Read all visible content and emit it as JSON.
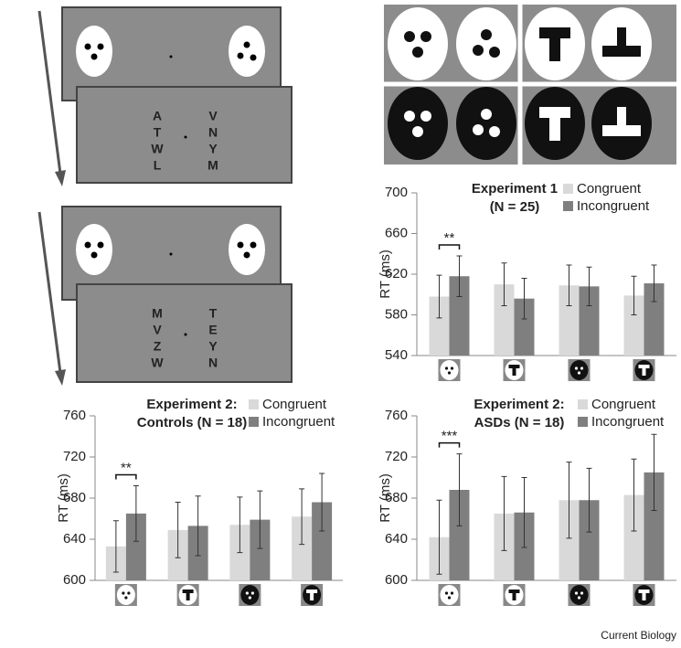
{
  "chart_data": [
    {
      "type": "bar",
      "title": [
        "Experiment 1",
        "(N = 25)"
      ],
      "y_label": "RT (ms)",
      "categories": [
        null,
        null,
        null,
        null
      ],
      "ylim": [
        540,
        700
      ],
      "yticks": [
        540,
        580,
        620,
        660,
        700
      ],
      "annotation": "**",
      "series": [
        {
          "name": "Congruent",
          "color": "#d9d9d9",
          "values": [
            598,
            610,
            609,
            599
          ],
          "errors": [
            21,
            21,
            20,
            19
          ]
        },
        {
          "name": "Incongruent",
          "color": "#7f7f7f",
          "values": [
            618,
            596,
            608,
            611
          ],
          "errors": [
            20,
            20,
            19,
            18
          ]
        }
      ]
    },
    {
      "type": "bar",
      "title": [
        "Experiment 2:",
        "Controls (N = 18)"
      ],
      "y_label": "RT (ms)",
      "categories": [
        null,
        null,
        null,
        null
      ],
      "ylim": [
        600,
        760
      ],
      "yticks": [
        600,
        640,
        680,
        720,
        760
      ],
      "annotation": "**",
      "series": [
        {
          "name": "Congruent",
          "color": "#d9d9d9",
          "values": [
            633,
            649,
            654,
            662
          ],
          "errors": [
            25,
            27,
            27,
            27
          ]
        },
        {
          "name": "Incongruent",
          "color": "#7f7f7f",
          "values": [
            665,
            653,
            659,
            676
          ],
          "errors": [
            27,
            29,
            28,
            28
          ]
        }
      ]
    },
    {
      "type": "bar",
      "title": [
        "Experiment 2:",
        "ASDs (N = 18)"
      ],
      "y_label": "RT (ms)",
      "categories": [
        null,
        null,
        null,
        null
      ],
      "ylim": [
        600,
        760
      ],
      "yticks": [
        600,
        640,
        680,
        720,
        760
      ],
      "annotation": "***",
      "series": [
        {
          "name": "Congruent",
          "color": "#d9d9d9",
          "values": [
            642,
            665,
            678,
            683
          ],
          "errors": [
            36,
            36,
            37,
            35
          ]
        },
        {
          "name": "Incongruent",
          "color": "#7f7f7f",
          "values": [
            688,
            666,
            678,
            705
          ],
          "errors": [
            35,
            34,
            31,
            37
          ]
        }
      ]
    }
  ],
  "stimuli": {
    "trial1_left": [
      "A",
      "T",
      "W",
      "L"
    ],
    "trial1_right": [
      "V",
      "N",
      "Y",
      "M"
    ],
    "trial2_left": [
      "M",
      "V",
      "Z",
      "W"
    ],
    "trial2_right": [
      "T",
      "E",
      "Y",
      "N"
    ]
  },
  "footer": "Current Biology"
}
